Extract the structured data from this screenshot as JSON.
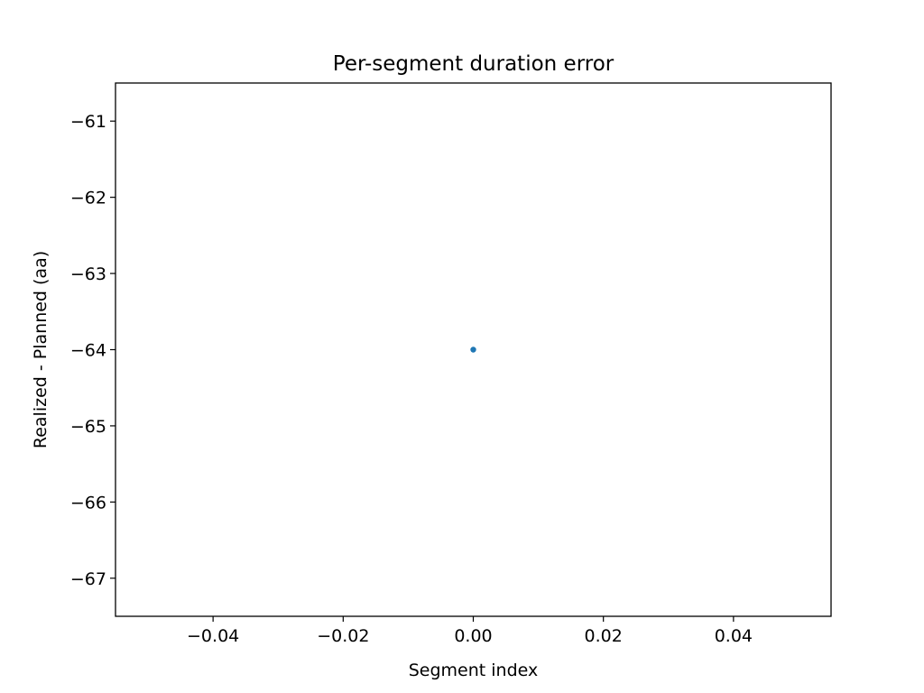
{
  "chart_data": {
    "type": "scatter",
    "title": "Per-segment duration error",
    "xlabel": "Segment index",
    "ylabel": "Realized - Planned (aa)",
    "xlim": [
      -0.055,
      0.055
    ],
    "ylim": [
      -67.5,
      -60.5
    ],
    "xticks": [
      -0.04,
      -0.02,
      0.0,
      0.02,
      0.04
    ],
    "xtick_labels": [
      "−0.04",
      "−0.02",
      "0.00",
      "0.02",
      "0.04"
    ],
    "yticks": [
      -61,
      -62,
      -63,
      -64,
      -65,
      -66,
      -67
    ],
    "ytick_labels": [
      "−61",
      "−62",
      "−63",
      "−64",
      "−65",
      "−66",
      "−67"
    ],
    "series": [
      {
        "color": "#1f77b4",
        "points": [
          {
            "x": 0,
            "y": -64
          }
        ]
      }
    ],
    "grid": false,
    "legend": "none"
  }
}
